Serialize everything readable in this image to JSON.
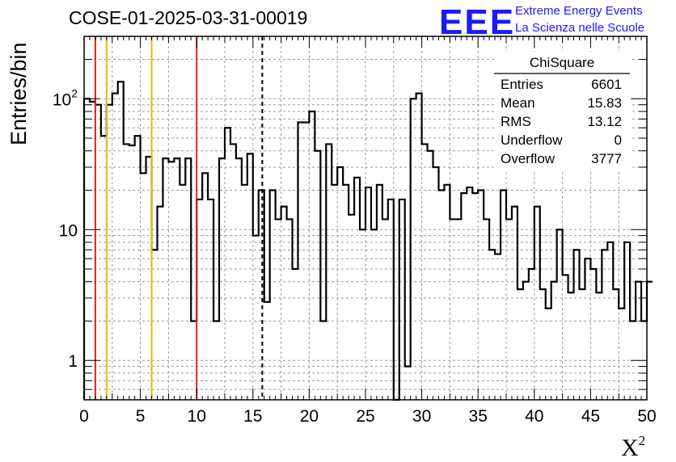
{
  "header": {
    "title": "COSE-01-2025-03-31-00019",
    "logo": "EEE",
    "logo_line1": "Extreme Energy Events",
    "logo_line2": "La Scienza nelle Scuole"
  },
  "stats": {
    "name": "ChiSquare",
    "rows": [
      {
        "label": "Entries",
        "value": "6601"
      },
      {
        "label": "Mean",
        "value": "15.83"
      },
      {
        "label": "RMS",
        "value": "13.12"
      },
      {
        "label": "Underflow",
        "value": "0"
      },
      {
        "label": "Overflow",
        "value": "3777"
      }
    ]
  },
  "chart_data": {
    "type": "histogram",
    "title": "COSE-01-2025-03-31-00019",
    "ylabel": "Entries/bin",
    "xlabel_base": "X",
    "xlabel_sup": "2",
    "xlim": [
      0,
      50
    ],
    "ylim": [
      0.5,
      300
    ],
    "yscale": "log",
    "grid": true,
    "bin_width": 0.5,
    "x_ticks": [
      0,
      5,
      10,
      15,
      20,
      25,
      30,
      35,
      40,
      45,
      50
    ],
    "x_tick_labels": [
      "0",
      "5",
      "10",
      "15",
      "20",
      "25",
      "30",
      "35",
      "40",
      "45",
      "50"
    ],
    "y_ticks": [
      1,
      10,
      100
    ],
    "y_tick_labels": [
      "1",
      "10",
      "10²"
    ],
    "values": [
      100,
      95,
      90,
      52,
      90,
      110,
      135,
      45,
      44,
      52,
      27,
      36,
      7,
      15,
      35,
      33,
      35,
      22,
      35,
      2,
      17,
      27,
      17,
      2,
      35,
      60,
      45,
      35,
      22,
      38,
      9,
      20,
      2.8,
      20,
      12,
      15,
      12,
      5,
      66,
      66,
      80,
      40,
      2,
      45,
      22,
      30,
      22,
      13,
      25,
      10,
      21,
      10,
      22,
      12,
      17,
      0.5,
      17,
      0.9,
      100,
      110,
      45,
      40,
      30,
      20,
      22,
      12,
      12,
      19,
      21,
      19,
      20,
      12,
      7,
      6.5,
      20,
      12,
      15,
      3.5,
      4,
      5,
      15,
      3.5,
      2.5,
      4,
      10,
      4.5,
      3.3,
      7,
      3.5,
      6,
      5,
      3.3,
      7,
      8,
      3.5,
      2.5,
      8,
      2,
      4,
      2,
      4
    ],
    "vlines": [
      {
        "x": 1,
        "color": "#e02020",
        "style": "solid"
      },
      {
        "x": 2,
        "color": "#f0b400",
        "style": "solid"
      },
      {
        "x": 6,
        "color": "#f0b400",
        "style": "solid"
      },
      {
        "x": 10,
        "color": "#e02020",
        "style": "solid"
      },
      {
        "x": 15.83,
        "color": "#000000",
        "style": "dashed"
      }
    ],
    "line_color": "#000000"
  }
}
